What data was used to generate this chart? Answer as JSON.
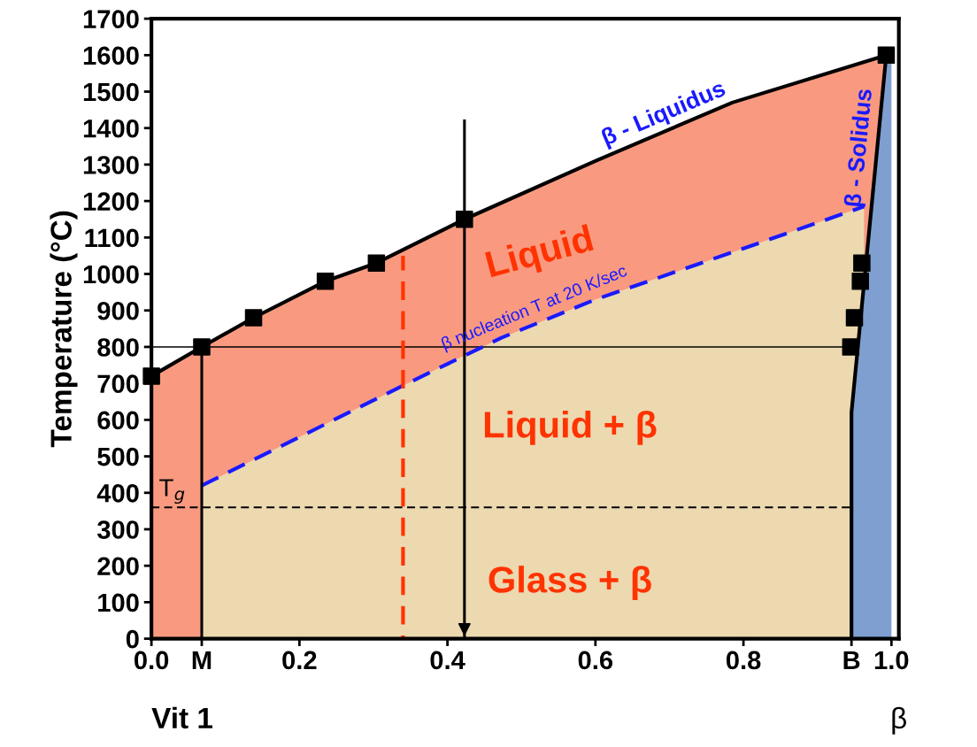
{
  "chart_data": {
    "type": "line",
    "ylabel": "Temperature (°C)",
    "xlim": [
      0,
      1.01
    ],
    "ylim": [
      0,
      1700
    ],
    "xticks": [
      {
        "value": 0,
        "label": "0.0"
      },
      {
        "value": 0.068,
        "label": "M"
      },
      {
        "value": 0.2,
        "label": "0.2"
      },
      {
        "value": 0.4,
        "label": "0.4"
      },
      {
        "value": 0.6,
        "label": "0.6"
      },
      {
        "value": 0.8,
        "label": "0.8"
      },
      {
        "value": 0.946,
        "label": "B"
      },
      {
        "value": 1.0,
        "label": "1.0"
      }
    ],
    "yticks": [
      0,
      100,
      200,
      300,
      400,
      500,
      600,
      700,
      800,
      900,
      1000,
      1100,
      1200,
      1300,
      1400,
      1500,
      1600,
      1700
    ],
    "grid": false,
    "legend": false,
    "series": [
      {
        "type": "area",
        "name": "β - Liquidus",
        "color": "#f99a80",
        "x": [
          0,
          0.068,
          0.138,
          0.235,
          0.304,
          0.423,
          0.6,
          0.785,
          0.993
        ],
        "values": [
          720,
          800,
          880,
          980,
          1030,
          1150,
          1310,
          1470,
          1600
        ]
      },
      {
        "type": "area",
        "name": "β nucleation T at 20 K/sec",
        "color": "#ecd9b0",
        "line_style": "dashed",
        "x": [
          0.068,
          0.34,
          0.423,
          0.473,
          0.6,
          0.8,
          0.963
        ],
        "values": [
          420,
          694,
          776,
          825,
          930,
          1070,
          1185
        ]
      },
      {
        "type": "area",
        "name": "β - Solidus",
        "color": "#7f9fd0",
        "x": [
          0.946,
          0.946,
          0.993,
          1.0
        ],
        "values": [
          0,
          620,
          1600,
          1600
        ]
      },
      {
        "color": "#000000",
        "marker": "none",
        "line_style": "solid",
        "x": [
          0.068,
          0.068
        ],
        "values": [
          0,
          800
        ]
      },
      {
        "color": "#ff3300",
        "marker": "none",
        "line_style": "dashed",
        "x": [
          0.34,
          0.34
        ],
        "values": [
          0,
          1050
        ]
      },
      {
        "color": "#000000",
        "marker": "none",
        "line_style": "solid",
        "x": [
          0.423,
          0.423
        ],
        "values": [
          1420,
          0
        ]
      },
      {
        "type": "scatter",
        "color": "#000000",
        "marker": "square",
        "x": [
          0,
          0.068,
          0.138,
          0.235,
          0.304,
          0.423,
          0.993
        ],
        "values": [
          720,
          800,
          880,
          980,
          1030,
          1150,
          1600
        ]
      },
      {
        "type": "scatter",
        "color": "#000000",
        "marker": "square",
        "x": [
          0.945,
          0.95,
          0.958,
          0.96
        ],
        "values": [
          800,
          880,
          980,
          1030
        ]
      }
    ],
    "ref_lines": [
      {
        "axis": "y",
        "value": 800,
        "color": "#000000",
        "line_style": "solid"
      },
      {
        "axis": "y",
        "value": 360,
        "label": "T$_{g}$",
        "color": "#000000",
        "line_style": "dashed"
      }
    ],
    "annotations": [
      "Liquid",
      "Liquid + β",
      "Glass + β",
      "Vit 1",
      "β"
    ]
  }
}
